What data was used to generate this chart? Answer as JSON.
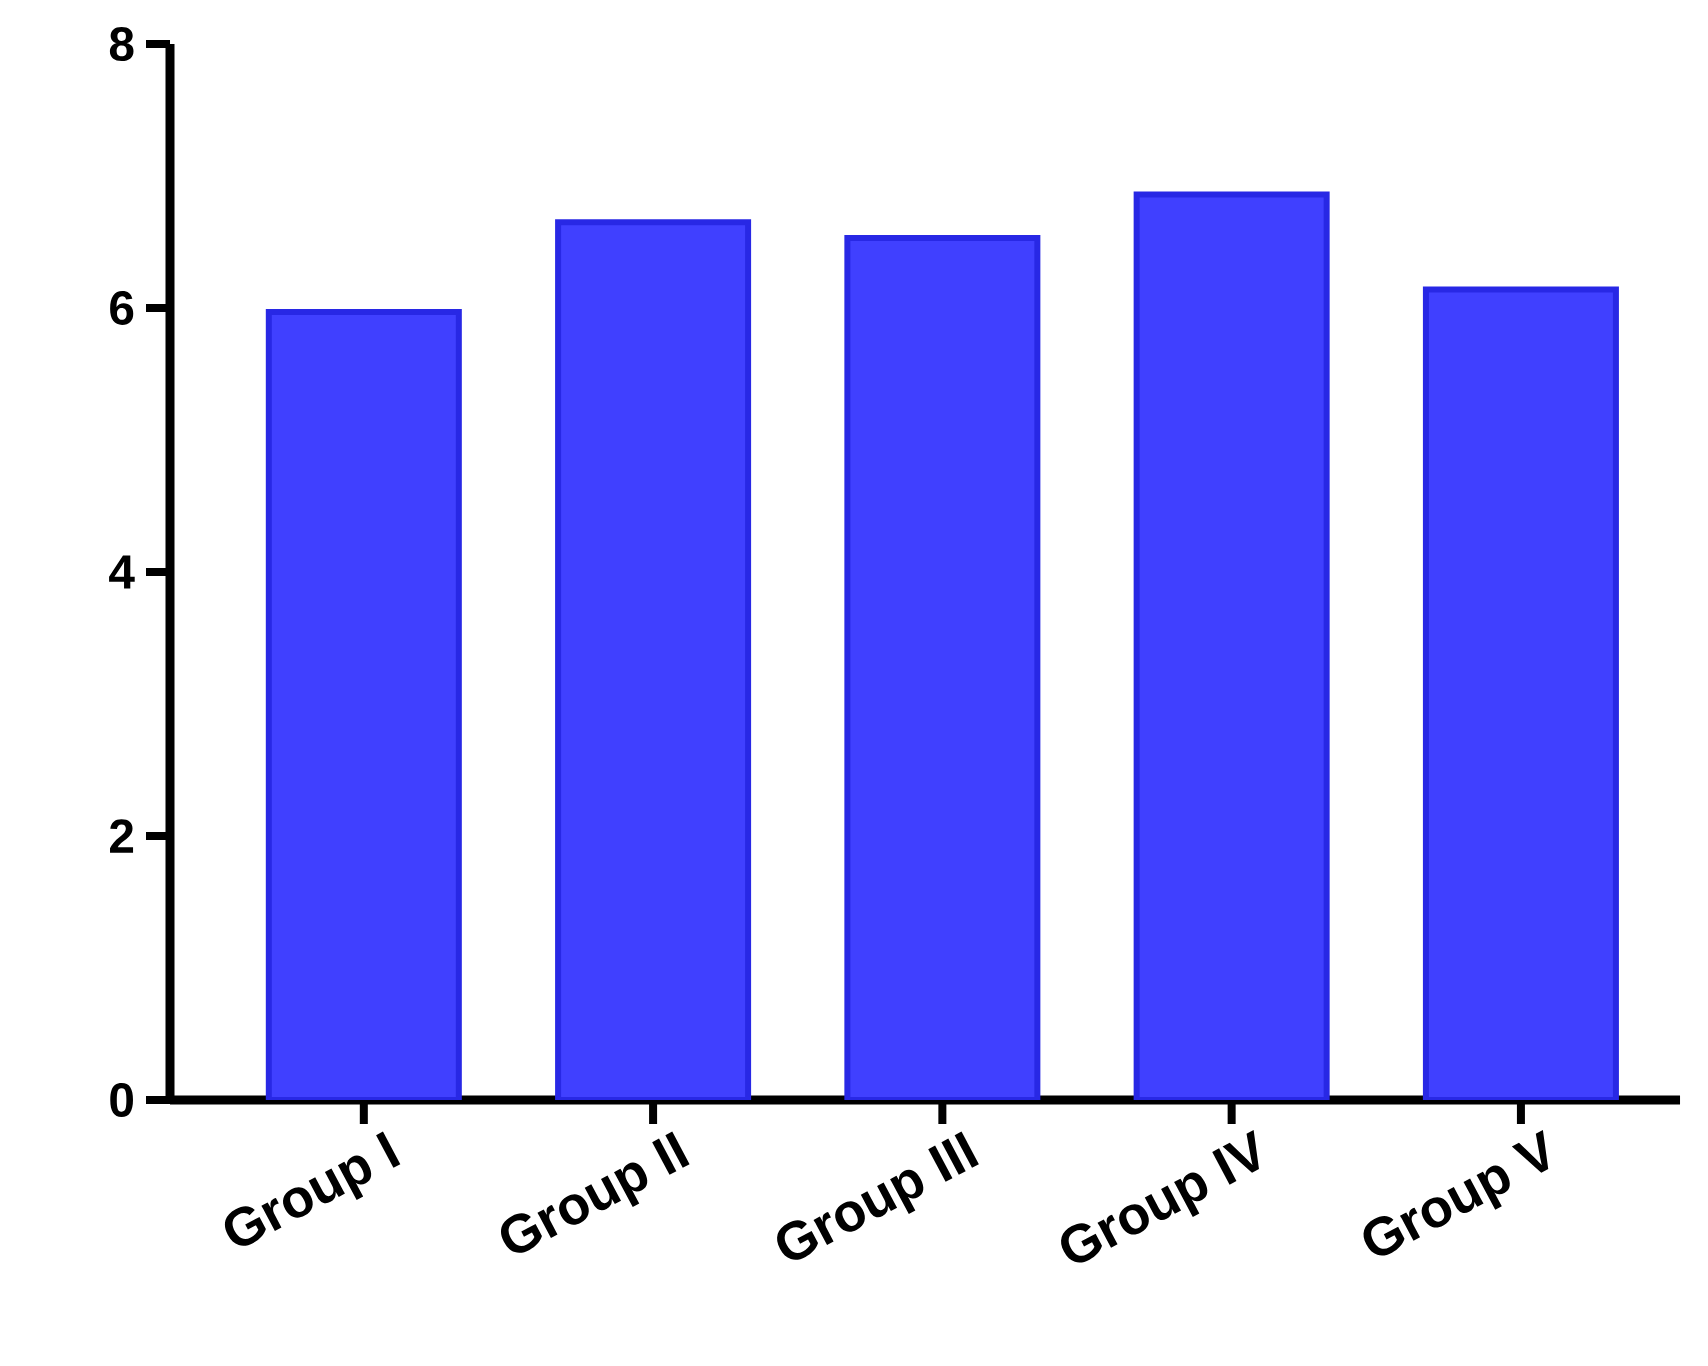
{
  "chart_data": {
    "type": "bar",
    "categories": [
      "Group I",
      "Group II",
      "Group III",
      "Group IV",
      "Group V"
    ],
    "values": [
      5.97,
      6.65,
      6.53,
      6.86,
      6.14
    ],
    "color": "#4040ff",
    "ylim": [
      0,
      8
    ],
    "yticks": [
      0,
      2,
      4,
      6,
      8
    ],
    "grid": false
  }
}
